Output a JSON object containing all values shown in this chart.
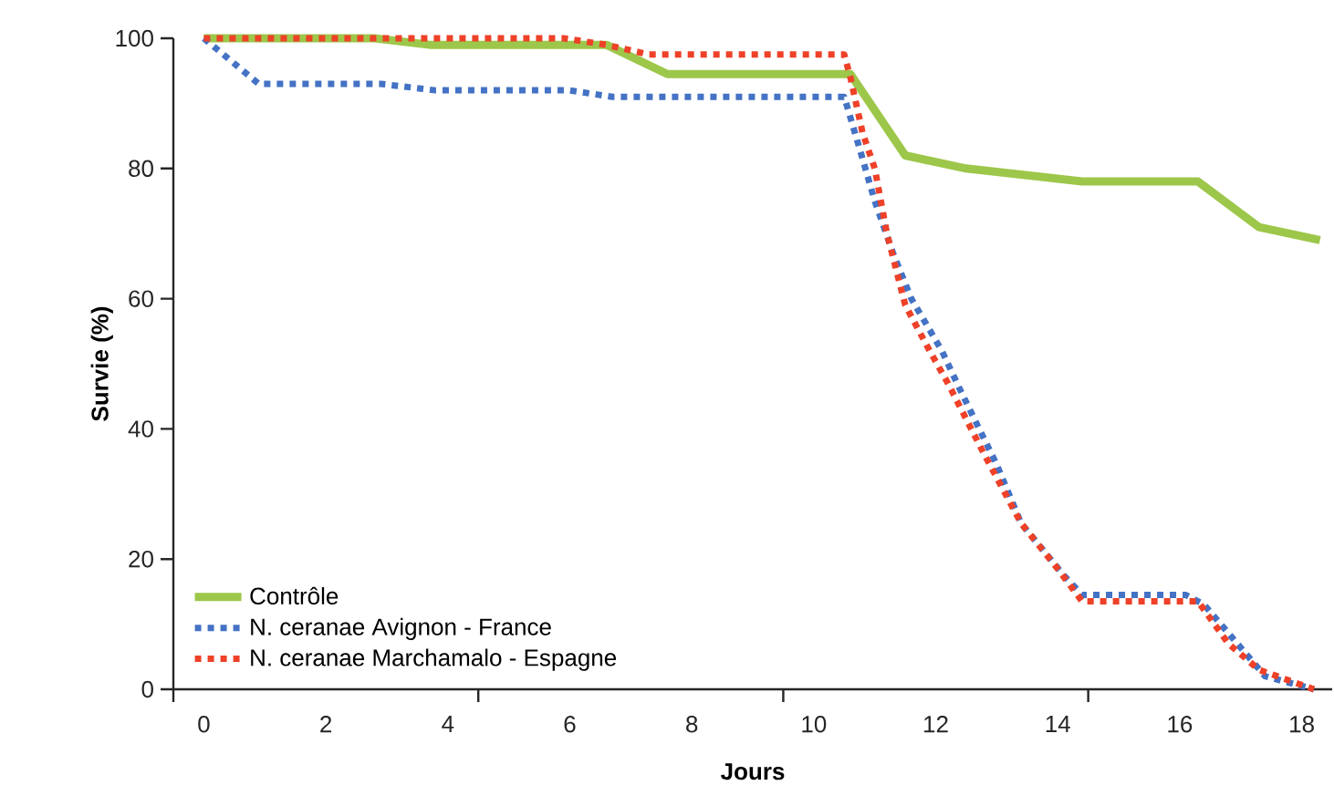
{
  "chart_data": {
    "type": "line",
    "xlabel": "Jours",
    "ylabel": "Survie (%)",
    "xlim": [
      -0.5,
      18.5
    ],
    "ylim": [
      0,
      100
    ],
    "xticks": [
      {
        "value": -0.5,
        "label": null
      },
      0,
      2,
      4,
      {
        "value": 4.5,
        "label": null
      },
      6,
      8,
      {
        "value": 9.5,
        "label": null
      },
      10,
      12,
      14,
      {
        "value": 14.5,
        "label": null
      },
      16,
      18
    ],
    "yticks": [
      0,
      20,
      40,
      60,
      80,
      100
    ],
    "grid": false,
    "legend": "bottom left",
    "marker": "none",
    "series": [
      {
        "name": "Contrôle",
        "color": "#9dc74a",
        "line_style": "solid",
        "x": [
          0,
          2.8,
          3.7,
          6.6,
          7.6,
          10.6,
          11.5,
          12.5,
          14.4,
          16.3,
          17.3,
          18.3
        ],
        "values": [
          100,
          100,
          99,
          99,
          94.5,
          94.5,
          82,
          80,
          78,
          78,
          71,
          69
        ]
      },
      {
        "name": "N. ceranae Avignon - France",
        "color": "#4472c4",
        "line_style": "dotted",
        "x": [
          0,
          0.9,
          2.9,
          3.8,
          6.0,
          6.7,
          10.5,
          10.8,
          11.0,
          11.3,
          11.6,
          12.1,
          12.4,
          13.0,
          13.4,
          14.1,
          14.4,
          16.1,
          16.4,
          17.4,
          18.2
        ],
        "values": [
          100,
          93,
          93,
          92,
          92,
          91,
          91,
          81.5,
          75,
          67,
          60,
          52,
          46,
          34.5,
          25.5,
          17.5,
          14.5,
          14.5,
          13,
          2,
          0
        ]
      },
      {
        "name": "N. ceranae Marchamalo - Espagne",
        "color": "#ee4128",
        "line_style": "dotted",
        "x": [
          0,
          5.9,
          6.6,
          7.3,
          10.5,
          10.6,
          10.8,
          11.0,
          11.2,
          11.5,
          11.9,
          12.2,
          12.8,
          13.4,
          14.0,
          14.4,
          16.3,
          16.8,
          17.3,
          18.2
        ],
        "values": [
          100,
          100,
          99,
          97.5,
          97.5,
          94,
          85.5,
          80,
          70,
          59,
          52,
          47,
          36,
          25.5,
          18.5,
          13.5,
          13.5,
          7,
          3,
          0
        ]
      }
    ]
  }
}
